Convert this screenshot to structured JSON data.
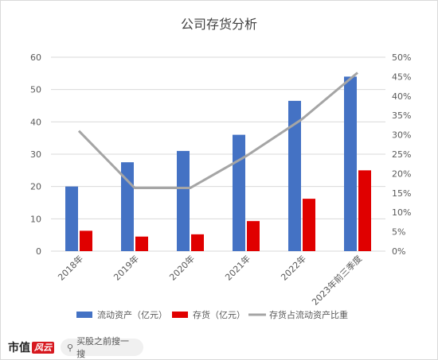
{
  "footer": {
    "brand_text": "市值",
    "brand_logo_text": "风云",
    "search_placeholder": "买股之前搜一搜"
  },
  "colors": {
    "assets": "#4472c4",
    "inventory": "#e00000",
    "ratio": "#a5a5a5",
    "grid": "#d9d9d9",
    "text": "#595959",
    "title": "#404040"
  },
  "chart_data": {
    "type": "bar",
    "title": "公司存货分析",
    "categories": [
      "2018年",
      "2019年",
      "2020年",
      "2021年",
      "2022年",
      "2023年前三季度"
    ],
    "series": [
      {
        "name": "流动资产（亿元）",
        "type": "bar",
        "axis": "left",
        "values": [
          20,
          27.5,
          31,
          36,
          46.5,
          54
        ]
      },
      {
        "name": "存货（亿元）",
        "type": "bar",
        "axis": "left",
        "values": [
          6.3,
          4.5,
          5.2,
          9.3,
          16.2,
          25
        ]
      },
      {
        "name": "存货占流动资产比重",
        "type": "line",
        "axis": "right",
        "values": [
          31,
          16.3,
          16.3,
          24.5,
          34,
          46
        ]
      }
    ],
    "ylim": [
      0,
      60
    ],
    "yticks": [
      "0",
      "10",
      "20",
      "30",
      "40",
      "50",
      "60"
    ],
    "y2lim": [
      0,
      50
    ],
    "y2ticks": [
      "0%",
      "5%",
      "10%",
      "15%",
      "20%",
      "25%",
      "30%",
      "35%",
      "40%",
      "45%",
      "50%"
    ],
    "grid": true,
    "legend": "bottom"
  }
}
